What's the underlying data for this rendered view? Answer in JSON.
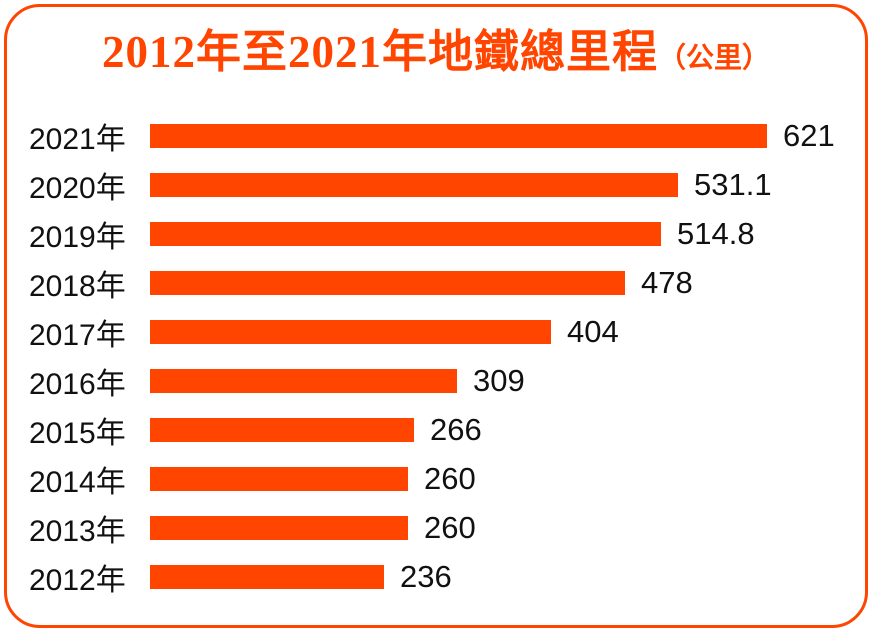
{
  "page": {
    "background": "#FFFFFF",
    "accent_color": "#FF4500",
    "text_color": "#111111"
  },
  "title": {
    "main": "2012年至2021年地鐵總里程",
    "unit": "（公里）",
    "full": "2012年至2021年地鐵總里程（公里）"
  },
  "chart_data": {
    "type": "bar",
    "orientation": "horizontal",
    "title": "2012年至2021年地鐵總里程（公里）",
    "unit": "公里",
    "categories": [
      "2021年",
      "2020年",
      "2019年",
      "2018年",
      "2017年",
      "2016年",
      "2015年",
      "2014年",
      "2013年",
      "2012年"
    ],
    "values": [
      621,
      531.1,
      514.8,
      478,
      404,
      309,
      266,
      260,
      260,
      236
    ],
    "value_labels": [
      "621",
      "531.1",
      "514.8",
      "478",
      "404",
      "309",
      "266",
      "260",
      "260",
      "236"
    ],
    "xlim": [
      0,
      640
    ],
    "bar_color": "#FF4500",
    "label_color": "#111111",
    "grid": false,
    "legend": false
  }
}
